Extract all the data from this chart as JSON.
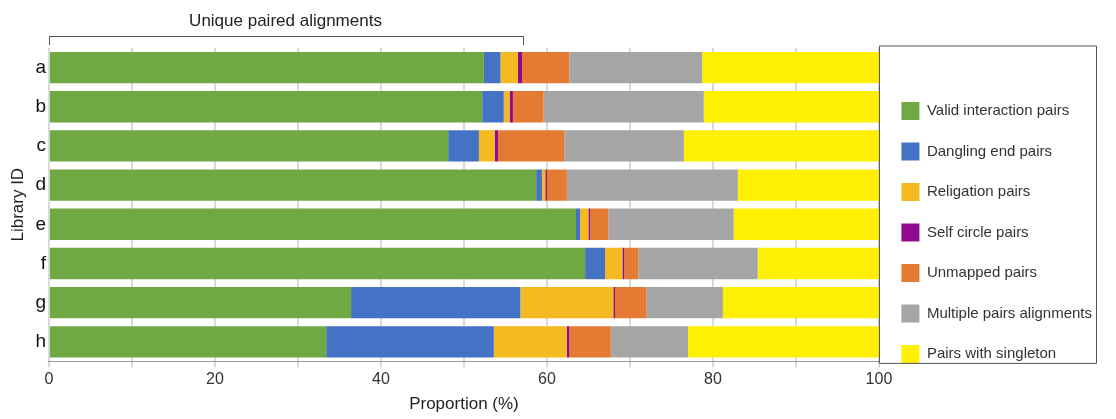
{
  "chart_data": {
    "type": "bar",
    "orientation": "horizontal",
    "stacked": true,
    "xlabel": "Proportion (%)",
    "ylabel": "Library ID",
    "annotations": [
      "Unique paired alignments"
    ],
    "categories": [
      "a",
      "b",
      "c",
      "d",
      "e",
      "f",
      "g",
      "h"
    ],
    "xlim": [
      0,
      100
    ],
    "xticks": [
      0,
      {
        "value": 10,
        "label": null
      },
      20,
      {
        "value": 30,
        "label": null
      },
      40,
      {
        "value": 50,
        "label": null
      },
      60,
      {
        "value": 70,
        "label": null
      },
      80,
      {
        "value": 90,
        "label": null
      },
      100
    ],
    "grid": "x",
    "legend": "right",
    "series": [
      {
        "name": "Valid interaction pairs",
        "color": "#70a844",
        "values": [
          52.4,
          52.2,
          48.1,
          58.7,
          63.5,
          64.6,
          36.4,
          33.4
        ]
      },
      {
        "name": "Dangling end pairs",
        "color": "#4472c4",
        "values": [
          2.0,
          2.6,
          3.7,
          0.7,
          0.5,
          2.4,
          20.4,
          20.2
        ]
      },
      {
        "name": "Religation pairs",
        "color": "#f5b921",
        "values": [
          2.1,
          0.7,
          1.9,
          0.4,
          1.0,
          2.1,
          11.2,
          8.8
        ]
      },
      {
        "name": "Self circle pairs",
        "color": "#8e0b8e",
        "values": [
          0.5,
          0.4,
          0.4,
          0.2,
          0.2,
          0.2,
          0.2,
          0.3
        ]
      },
      {
        "name": "Unmapped pairs",
        "color": "#e57b33",
        "values": [
          5.7,
          3.7,
          8.0,
          2.4,
          2.2,
          1.7,
          3.8,
          5.0
        ]
      },
      {
        "name": "Multiple pairs alignments",
        "color": "#a5a5a5",
        "values": [
          16.0,
          19.3,
          14.4,
          20.6,
          15.1,
          14.4,
          9.2,
          9.3
        ]
      },
      {
        "name": "Pairs with singleton",
        "color": "#ffef00",
        "values": [
          21.3,
          21.1,
          23.5,
          17.0,
          17.5,
          14.6,
          18.8,
          23.0
        ]
      }
    ]
  }
}
